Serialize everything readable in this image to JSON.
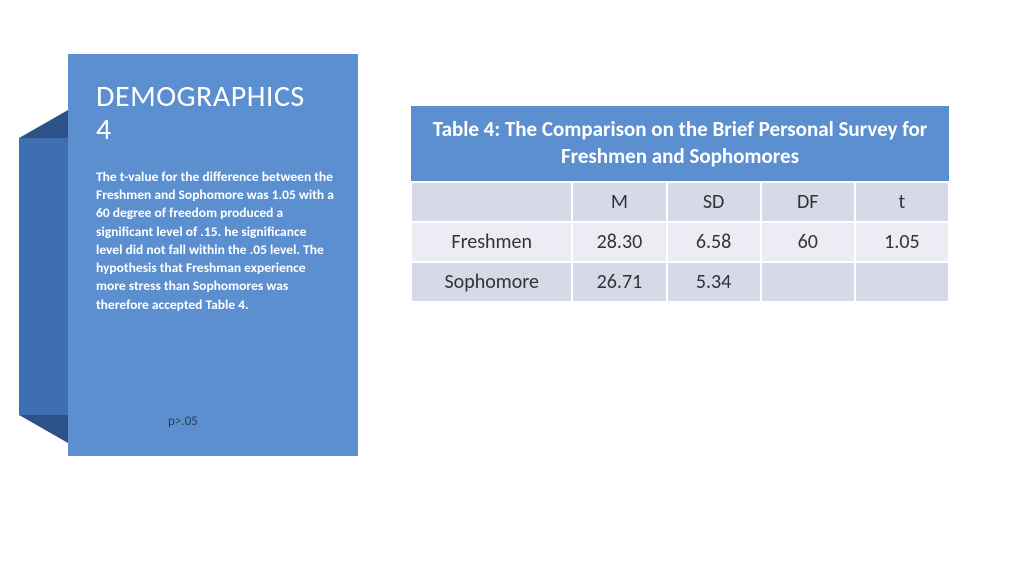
{
  "panel": {
    "title_line1": "DEMOGRAPHICS",
    "title_line2": "4",
    "body": "The t-value for the difference between the Freshmen and Sophomore was 1.05 with a 60 degree of freedom produced a significant level of .15. he significance level did not fall within the .05 level. The hypothesis that Freshman experience more stress than Sophomores was therefore accepted Table 4.",
    "background_color": "#5b8fd0",
    "ribbon_back_color": "#3e6fb0",
    "ribbon_fold_color": "#2d5289",
    "text_color": "#ffffff"
  },
  "stray_text": "p>.05",
  "table": {
    "title": "Table 4: The Comparison on the Brief Personal Survey for Freshmen and Sophomores",
    "header_bg": "#5b8fd0",
    "header_fg": "#ffffff",
    "row_bg_a": "#ecedf4",
    "row_bg_b": "#d5d9e8",
    "cell_fg": "#333333",
    "columns": [
      "",
      "M",
      "SD",
      "DF",
      "t"
    ],
    "rows": [
      {
        "label": "Freshmen",
        "M": "28.30",
        "SD": "6.58",
        "DF": "60",
        "t": "1.05"
      },
      {
        "label": "Sophomore",
        "M": "26.71",
        "SD": "5.34",
        "DF": "",
        "t": ""
      }
    ]
  }
}
